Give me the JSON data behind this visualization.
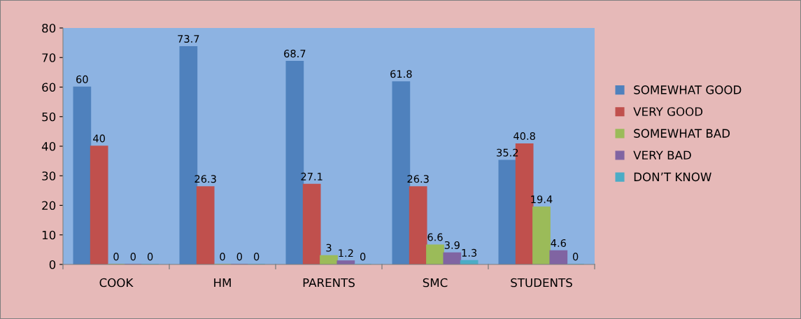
{
  "chart_data": {
    "type": "bar",
    "categories": [
      "COOK",
      "HM",
      "PARENTS",
      "SMC",
      "STUDENTS"
    ],
    "series": [
      {
        "name": "SOMEWHAT GOOD",
        "color": "#4f81bd",
        "values": [
          60,
          73.7,
          68.7,
          61.8,
          35.2
        ]
      },
      {
        "name": "VERY GOOD",
        "color": "#c0504d",
        "values": [
          40,
          26.3,
          27.1,
          26.3,
          40.8
        ]
      },
      {
        "name": "SOMEWHAT BAD",
        "color": "#9bbb59",
        "values": [
          0,
          0,
          3,
          6.6,
          19.4
        ]
      },
      {
        "name": "VERY BAD",
        "color": "#8064a2",
        "values": [
          0,
          0,
          1.2,
          3.9,
          4.6
        ]
      },
      {
        "name": "DON’T KNOW",
        "color": "#4bacc6",
        "values": [
          0,
          0,
          0,
          1.3,
          0
        ]
      }
    ],
    "ylim": [
      0,
      80
    ],
    "yticks": [
      0,
      10,
      20,
      30,
      40,
      50,
      60,
      70,
      80
    ],
    "data_labels": true,
    "legend": "right",
    "grid": false
  }
}
